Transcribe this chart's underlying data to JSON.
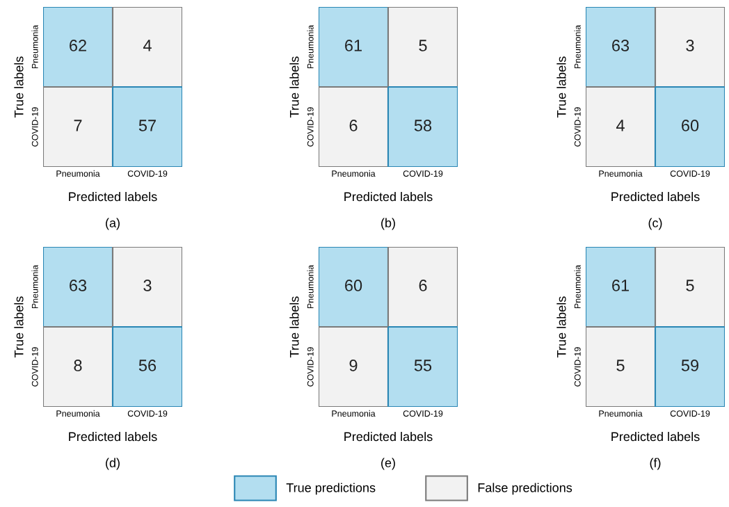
{
  "chart_data": [
    {
      "type": "heatmap",
      "title": "(a)",
      "xlabel": "Predicted labels",
      "ylabel": "True labels",
      "categories": [
        "Pneumonia",
        "COVID-19"
      ],
      "y_categories": [
        "Pneumonia",
        "COVID-19"
      ],
      "cells": [
        [
          62,
          4
        ],
        [
          7,
          57
        ]
      ],
      "colors": [
        [
          "#b3def0",
          "#f2f2f2"
        ],
        [
          "#f2f2f2",
          "#b3def0"
        ]
      ],
      "data_labels": true
    },
    {
      "type": "heatmap",
      "title": "(b)",
      "xlabel": "Predicted labels",
      "ylabel": "True labels",
      "categories": [
        "Pneumonia",
        "COVID-19"
      ],
      "y_categories": [
        "Pneumonia",
        "COVID-19"
      ],
      "cells": [
        [
          61,
          5
        ],
        [
          6,
          58
        ]
      ],
      "colors": [
        [
          "#b3def0",
          "#f2f2f2"
        ],
        [
          "#f2f2f2",
          "#b3def0"
        ]
      ],
      "data_labels": true
    },
    {
      "type": "heatmap",
      "title": "(c)",
      "xlabel": "Predicted labels",
      "ylabel": "True labels",
      "categories": [
        "Pneumonia",
        "COVID-19"
      ],
      "y_categories": [
        "Pneumonia",
        "COVID-19"
      ],
      "cells": [
        [
          63,
          3
        ],
        [
          4,
          60
        ]
      ],
      "colors": [
        [
          "#b3def0",
          "#f2f2f2"
        ],
        [
          "#f2f2f2",
          "#b3def0"
        ]
      ],
      "data_labels": true
    },
    {
      "type": "heatmap",
      "title": "(d)",
      "xlabel": "Predicted labels",
      "ylabel": "True labels",
      "categories": [
        "Pneumonia",
        "COVID-19"
      ],
      "y_categories": [
        "Pneumonia",
        "COVID-19"
      ],
      "cells": [
        [
          63,
          3
        ],
        [
          8,
          56
        ]
      ],
      "colors": [
        [
          "#b3def0",
          "#f2f2f2"
        ],
        [
          "#f2f2f2",
          "#b3def0"
        ]
      ],
      "data_labels": true
    },
    {
      "type": "heatmap",
      "title": "(e)",
      "xlabel": "Predicted labels",
      "ylabel": "True labels",
      "categories": [
        "Pneumonia",
        "COVID-19"
      ],
      "y_categories": [
        "Pneumonia",
        "COVID-19"
      ],
      "cells": [
        [
          60,
          6
        ],
        [
          9,
          55
        ]
      ],
      "colors": [
        [
          "#b3def0",
          "#f2f2f2"
        ],
        [
          "#f2f2f2",
          "#b3def0"
        ]
      ],
      "data_labels": true
    },
    {
      "type": "heatmap",
      "title": "(f)",
      "xlabel": "Predicted labels",
      "ylabel": "True labels",
      "categories": [
        "Pneumonia",
        "COVID-19"
      ],
      "y_categories": [
        "Pneumonia",
        "COVID-19"
      ],
      "cells": [
        [
          61,
          5
        ],
        [
          5,
          59
        ]
      ],
      "colors": [
        [
          "#b3def0",
          "#f2f2f2"
        ],
        [
          "#f2f2f2",
          "#b3def0"
        ]
      ],
      "data_labels": true
    },
    {
      "type": "other",
      "legend": "bottom",
      "series": [
        {
          "name": "True predictions",
          "color": "#b3def0"
        },
        {
          "name": "False predictions",
          "color": "#f2f2f2"
        }
      ]
    }
  ]
}
